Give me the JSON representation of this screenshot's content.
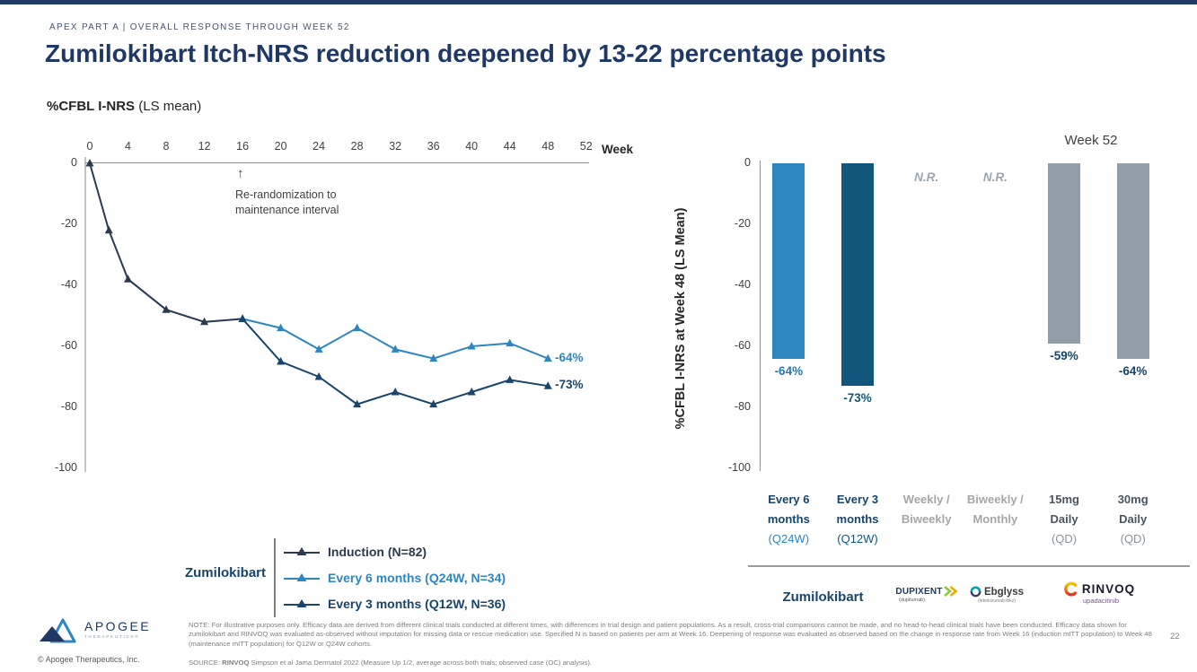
{
  "accent": {
    "navy": "#1F3864",
    "blue": "#2E86C1",
    "dark_teal": "#13567C",
    "slate": "#2B3A4F",
    "gray_bar": "#919EA9",
    "gray_muted": "#A6A6A6"
  },
  "header": {
    "eyebrow": "APEX PART A | OVERALL RESPONSE THROUGH WEEK 52",
    "title": "Zumilokibart Itch-NRS reduction deepened by 13-22 percentage points",
    "subtitle_bold": "%CFBL I-NRS",
    "subtitle_rest": " (LS mean)"
  },
  "chart_data": [
    {
      "type": "line",
      "name": "itch-nrs-percent-change-over-time",
      "xlabel": "Week",
      "x_ticks": [
        0,
        4,
        8,
        12,
        16,
        20,
        24,
        28,
        32,
        36,
        40,
        44,
        48,
        52
      ],
      "y_ticks": [
        0,
        -20,
        -40,
        -60,
        -80,
        -100
      ],
      "xlim": [
        0,
        52
      ],
      "ylim": [
        0,
        -100
      ],
      "annotation": {
        "arrow": "↑",
        "line1": "Re-randomization to",
        "line2": "maintenance interval",
        "week": 16
      },
      "legend_group": "Zumilokibart",
      "series": [
        {
          "name": "Induction (N=82)",
          "color": "#2B3A4F",
          "x": [
            0,
            2,
            4,
            8,
            12,
            16
          ],
          "y": [
            0,
            -22,
            -38,
            -48,
            -52,
            -51
          ]
        },
        {
          "name": "Every 6 months (Q24W, N=34)",
          "color": "#2E86C1",
          "x": [
            16,
            20,
            24,
            28,
            32,
            36,
            40,
            44,
            48
          ],
          "y": [
            -51,
            -54,
            -61,
            -54,
            -61,
            -64,
            -60,
            -59,
            -64
          ],
          "end_label": "-64%"
        },
        {
          "name": "Every 3 months (Q12W, N=36)",
          "color": "#17456B",
          "x": [
            16,
            20,
            24,
            28,
            32,
            36,
            40,
            44,
            48
          ],
          "y": [
            -51,
            -65,
            -70,
            -79,
            -75,
            -79,
            -75,
            -71,
            -73
          ],
          "end_label": "-73%"
        }
      ]
    },
    {
      "type": "bar",
      "name": "week-48-cross-trial-comparison",
      "corner_label": "Week 52",
      "ylabel": "%CFBL I-NRS at Week 48 (LS Mean)",
      "y_ticks": [
        0,
        -20,
        -40,
        -60,
        -80,
        -100
      ],
      "ylim": [
        0,
        -100
      ],
      "categories": [
        "Every 6 months (Q24W)",
        "Every 3 months (Q12W)",
        "Weekly / Biweekly",
        "Biweekly / Monthly",
        "15mg Daily (QD)",
        "30mg Daily (QD)"
      ],
      "values": [
        -64,
        -73,
        null,
        null,
        -59,
        -64
      ],
      "value_labels": [
        "-64%",
        "-73%",
        "N.R.",
        "N.R.",
        "-59%",
        "-64%"
      ],
      "bar_colors": [
        "#2E86C1",
        "#13567C",
        null,
        null,
        "#919EA9",
        "#919EA9"
      ],
      "label_colors": [
        "#2779AE",
        "#13567C",
        "#9AA5AE",
        "#9AA5AE",
        "#17456B",
        "#17456B"
      ],
      "category_lines": [
        {
          "lines": [
            "Every 6",
            "months"
          ],
          "sub": "(Q24W)",
          "color": "#17456B",
          "sub_color": "#2E86C1"
        },
        {
          "lines": [
            "Every 3",
            "months"
          ],
          "sub": "(Q12W)",
          "color": "#17456B",
          "sub_color": "#13567C"
        },
        {
          "lines": [
            "Weekly /",
            "Biweekly"
          ],
          "sub": "",
          "color": "#A6A6A6",
          "sub_color": "#A6A6A6"
        },
        {
          "lines": [
            "Biweekly /",
            "Monthly"
          ],
          "sub": "",
          "color": "#A6A6A6",
          "sub_color": "#A6A6A6"
        },
        {
          "lines": [
            "15mg",
            "Daily"
          ],
          "sub": "(QD)",
          "color": "#4A5560",
          "sub_color": "#8A939C"
        },
        {
          "lines": [
            "30mg",
            "Daily"
          ],
          "sub": "(QD)",
          "color": "#4A5560",
          "sub_color": "#8A939C"
        }
      ]
    }
  ],
  "brands": {
    "zumilokibart": "Zumilokibart",
    "dupixent": {
      "name": "DUPIXENT",
      "sub": "(dupilumab)"
    },
    "ebglyss": {
      "name": "Ebglyss",
      "sub": "(lebrikizumab-lbkz)"
    },
    "rinvoq": {
      "name": "RINVOQ",
      "sub": "upadacitinib"
    }
  },
  "footer": {
    "logo_name": "APOGEE",
    "logo_sub": "THERAPEUTICS®",
    "copyright": "© Apogee Therapeutics, Inc.",
    "note": "NOTE: For illustrative purposes only. Efficacy data are derived from different clinical trials conducted at different times, with differences in trial design and patient populations. As a result, cross-trial comparisons cannot be made, and no head-to-head clinical trials have been conducted. Efficacy data shown for zumilokibart and RINVOQ was evaluated as-observed without imputation for missing data or rescue medication use. Specified N is based on patients per arm at Week 16. Deepening of response was evaluated as observed based on the change in response rate from Week 16 (induction mITT population) to Week 48 (maintenance mITT population) for Q12W or Q24W cohorts.",
    "source_prefix": "SOURCE: ",
    "source_bold": "RINVOQ",
    "source_rest": " Simpson et al Jama Dermatol 2022 (Measure Up 1/2, average across both trials; observed case (OC) analysis).",
    "page_number": "22"
  }
}
